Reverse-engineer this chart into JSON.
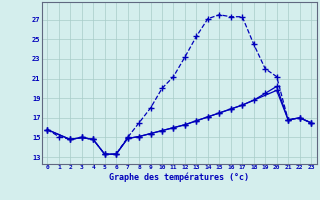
{
  "bg_color": "#d4eeed",
  "grid_color": "#a8ccc8",
  "line_color": "#0000bb",
  "xlabel": "Graphe des températures (°c)",
  "yticks": [
    13,
    15,
    17,
    19,
    21,
    23,
    25,
    27
  ],
  "xticks": [
    0,
    1,
    2,
    3,
    4,
    5,
    6,
    7,
    8,
    9,
    10,
    11,
    12,
    13,
    14,
    15,
    16,
    17,
    18,
    19,
    20,
    21,
    22,
    23
  ],
  "ylim": [
    12.3,
    28.8
  ],
  "xlim": [
    -0.5,
    23.5
  ],
  "line1_x": [
    0,
    1,
    2,
    3,
    4,
    5,
    6,
    7,
    8,
    9,
    10,
    11,
    12,
    13,
    14,
    15,
    16,
    17,
    18,
    19,
    20,
    21,
    22,
    23
  ],
  "line1_y": [
    15.8,
    15.1,
    14.8,
    15.0,
    14.8,
    13.3,
    13.3,
    15.0,
    16.5,
    18.0,
    20.0,
    21.2,
    23.2,
    25.3,
    27.1,
    27.5,
    27.3,
    27.3,
    24.5,
    22.0,
    21.2,
    16.8,
    17.0,
    16.5
  ],
  "line2_x": [
    0,
    2,
    3,
    4,
    5,
    6,
    7,
    8,
    9,
    10,
    11,
    12,
    13,
    14,
    15,
    16,
    17,
    18,
    19,
    20,
    21,
    22,
    23
  ],
  "line2_y": [
    15.8,
    14.8,
    15.0,
    14.8,
    13.3,
    13.3,
    14.9,
    15.1,
    15.4,
    15.7,
    16.0,
    16.3,
    16.7,
    17.1,
    17.5,
    17.9,
    18.3,
    18.8,
    19.5,
    20.2,
    16.8,
    17.0,
    16.5
  ],
  "line3_x": [
    0,
    2,
    3,
    4,
    5,
    6,
    7,
    8,
    9,
    10,
    11,
    12,
    13,
    14,
    15,
    16,
    17,
    20,
    21,
    22,
    23
  ],
  "line3_y": [
    15.8,
    14.8,
    15.0,
    14.8,
    13.3,
    13.3,
    14.9,
    15.1,
    15.4,
    15.7,
    16.0,
    16.3,
    16.7,
    17.1,
    17.5,
    17.9,
    18.3,
    19.8,
    16.8,
    17.0,
    16.5
  ],
  "marker": "+",
  "markersize": 4,
  "linewidth": 0.9
}
